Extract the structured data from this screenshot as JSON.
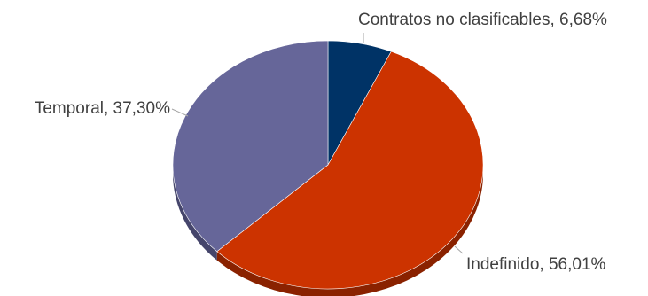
{
  "chart_data": {
    "type": "pie",
    "title": "",
    "slices": [
      {
        "label": "Contratos no clasificables",
        "value": 6.68,
        "display": "6,68%",
        "color": "#003366",
        "side_color": "#001f3f"
      },
      {
        "label": "Indefinido",
        "value": 56.01,
        "display": "56,01%",
        "color": "#cc3300",
        "side_color": "#8a2200"
      },
      {
        "label": "Temporal",
        "value": 37.3,
        "display": "37,30%",
        "color": "#666699",
        "side_color": "#45456b"
      }
    ],
    "data_labels": [
      "Contratos no clasificables, 6,68%",
      "Indefinido, 56,01%",
      "Temporal, 37,30%"
    ],
    "legend": "none"
  }
}
